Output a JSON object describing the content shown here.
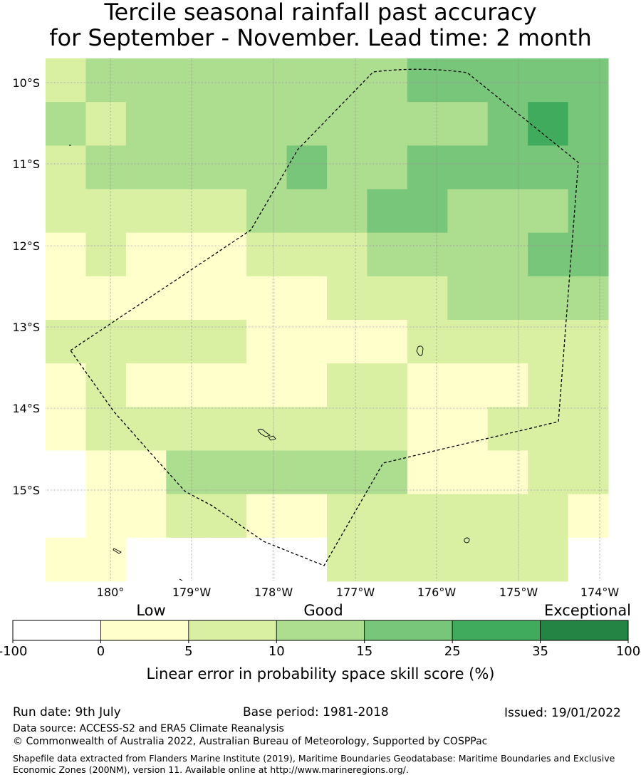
{
  "title": {
    "line1": "Tercile seasonal rainfall past accuracy",
    "line2": "for September - November. Lead time: 2 month"
  },
  "map": {
    "lat_labels": [
      "10°S",
      "11°S",
      "12°S",
      "13°S",
      "14°S",
      "15°S"
    ],
    "lon_labels": [
      "180°",
      "179°W",
      "178°W",
      "177°W",
      "176°W",
      "175°W",
      "174°W"
    ],
    "category_colors": [
      "#ffffff",
      "#ffffcc",
      "#d9f0a3",
      "#addd8e",
      "#78c679",
      "#41ab5d",
      "#238443"
    ],
    "grid_cells": [
      [
        2,
        3,
        3,
        3,
        3,
        3,
        3,
        3,
        3,
        4,
        4,
        4,
        4,
        4
      ],
      [
        3,
        2,
        3,
        3,
        3,
        3,
        3,
        3,
        3,
        3,
        3,
        4,
        5,
        4
      ],
      [
        2,
        3,
        3,
        3,
        3,
        3,
        4,
        3,
        3,
        4,
        4,
        4,
        4,
        4
      ],
      [
        2,
        2,
        2,
        2,
        2,
        3,
        3,
        3,
        4,
        4,
        3,
        3,
        3,
        4
      ],
      [
        1,
        2,
        1,
        1,
        1,
        2,
        2,
        2,
        3,
        3,
        3,
        3,
        4,
        4
      ],
      [
        1,
        1,
        1,
        1,
        1,
        1,
        1,
        2,
        2,
        2,
        3,
        3,
        3,
        3
      ],
      [
        2,
        2,
        2,
        2,
        2,
        1,
        1,
        1,
        1,
        2,
        2,
        2,
        2,
        2
      ],
      [
        1,
        2,
        1,
        1,
        1,
        1,
        1,
        2,
        2,
        1,
        1,
        1,
        2,
        2
      ],
      [
        1,
        2,
        2,
        2,
        2,
        2,
        2,
        2,
        2,
        1,
        1,
        2,
        2,
        2
      ],
      [
        0,
        1,
        1,
        3,
        3,
        3,
        3,
        3,
        3,
        1,
        1,
        1,
        2,
        2
      ],
      [
        0,
        1,
        1,
        2,
        2,
        1,
        1,
        2,
        2,
        2,
        2,
        2,
        2,
        1
      ],
      [
        1,
        1,
        0,
        0,
        0,
        0,
        0,
        2,
        2,
        2,
        2,
        2,
        2,
        0
      ]
    ]
  },
  "colorbar": {
    "group_labels": [
      "Low",
      "Good",
      "Exceptional"
    ],
    "tick_labels": [
      "-100",
      "0",
      "5",
      "10",
      "15",
      "25",
      "35",
      "100"
    ],
    "label": "Linear error in probability space skill score (%)"
  },
  "footer": {
    "run_date": "Run date: 9th July",
    "base_period": "Base period: 1981-2018",
    "issued": "Issued: 19/01/2022",
    "data_source": "Data source: ACCESS-S2 and ERA5 Climate Reanalysis",
    "copyright": "© Commonwealth of Australia 2022, Australian Bureau of Meteorology, Supported by COSPPac",
    "shapefile": "Shapefile data extracted from Flanders Marine Institute (2019), Maritime Boundaries Geodatabase: Maritime Boundaries and Exclusive Economic Zones (200NM), version 11. Available online at http://www.marineregions.org/."
  }
}
